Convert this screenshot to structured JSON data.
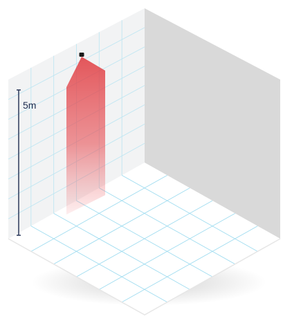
{
  "dimension": {
    "label": "5m"
  },
  "colors": {
    "left_wall": "#f2f3f4",
    "right_wall": "#d9d9d9",
    "floor": "#ffffff",
    "grid": "#bfe6f2",
    "beam": "#e03a3f",
    "dimension_line": "#1d2b4f",
    "sensor": "#1a1a1a"
  },
  "scene": {
    "left_wall_grid": {
      "columns": 6,
      "rows": 8
    },
    "floor_grid": {
      "columns": 6,
      "rows": 6
    },
    "beam_fade": "top-to-bottom"
  }
}
